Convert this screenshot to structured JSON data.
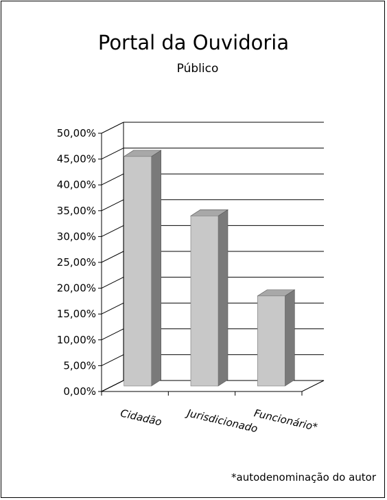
{
  "chart_data": {
    "type": "bar",
    "title": "Portal da Ouvidoria",
    "subtitle": "Público",
    "categories": [
      "Cidadão",
      "Jurisdicionado",
      "Funcionário*"
    ],
    "values": [
      45.5,
      34.0,
      18.5
    ],
    "value_unit": "%",
    "ylim": [
      0,
      50
    ],
    "yticks": [
      "0,00%",
      "5,00%",
      "10,00%",
      "15,00%",
      "20,00%",
      "25,00%",
      "30,00%",
      "35,00%",
      "40,00%",
      "45,00%",
      "50,00%"
    ],
    "grid": true,
    "legend": "none",
    "style": "3d",
    "colors": {
      "bar_front": "#c8c8c8",
      "bar_side": "#7a7a7a",
      "bar_top": "#a8a8a8",
      "grid": "#000000"
    }
  },
  "footnote": "*autodenominação do autor"
}
